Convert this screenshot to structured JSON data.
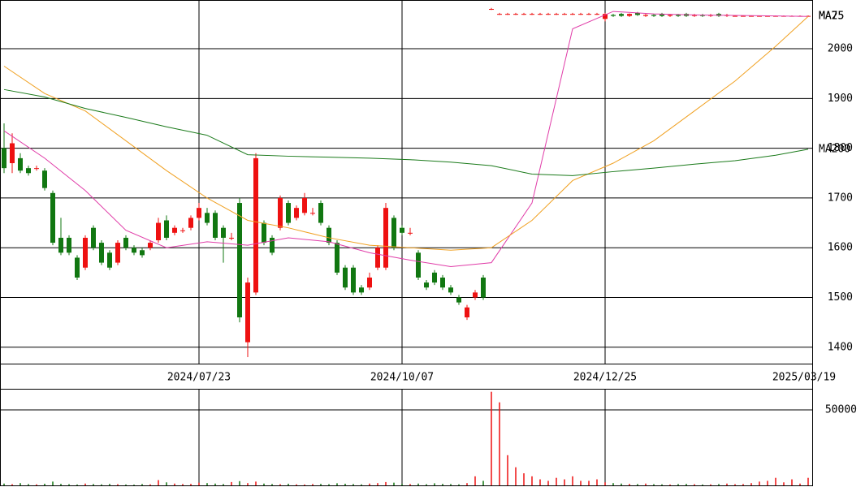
{
  "chart_data": {
    "type": "candlestick",
    "categories": [
      null,
      null,
      null,
      null,
      null,
      null,
      null,
      null,
      null,
      null,
      null,
      null,
      null,
      null,
      null,
      null,
      null,
      null,
      null,
      null,
      null,
      null,
      null,
      null,
      "2024/07/23",
      null,
      null,
      null,
      null,
      null,
      null,
      null,
      null,
      null,
      null,
      null,
      null,
      null,
      null,
      null,
      null,
      null,
      null,
      null,
      null,
      null,
      null,
      null,
      null,
      "2024/10/07",
      null,
      null,
      null,
      null,
      null,
      null,
      null,
      null,
      null,
      null,
      null,
      null,
      null,
      null,
      null,
      null,
      null,
      null,
      null,
      null,
      null,
      null,
      null,
      null,
      "2024/12/25",
      null,
      null,
      null,
      null,
      null,
      null,
      null,
      null,
      null,
      null,
      null,
      null,
      null,
      null,
      null,
      null,
      null,
      null,
      null,
      null,
      null,
      null,
      null,
      null,
      "2025/03/19"
    ],
    "open": [
      1800,
      1770,
      1780,
      1760,
      1760,
      1755,
      1710,
      1620,
      1620,
      1580,
      1560,
      1640,
      1610,
      1590,
      1570,
      1620,
      1600,
      1595,
      1600,
      1615,
      1655,
      1630,
      1635,
      1640,
      1660,
      1670,
      1670,
      1640,
      1620,
      1690,
      1410,
      1510,
      1650,
      1620,
      1640,
      1690,
      1660,
      1670,
      1670,
      1690,
      1640,
      1610,
      1560,
      1560,
      1520,
      1520,
      1560,
      1560,
      1660,
      1640,
      1630,
      1590,
      1530,
      1550,
      1540,
      1520,
      1500,
      1460,
      1500,
      1540,
      2080,
      2070,
      2070,
      2070,
      2070,
      2070,
      2070,
      2070,
      2070,
      2070,
      2070,
      2070,
      2070,
      2070,
      2060,
      2068,
      2070,
      2066,
      2072,
      2066,
      2068,
      2070,
      2066,
      2068,
      2070,
      2066,
      2068,
      2066,
      2070,
      2066,
      2066,
      2066,
      2066,
      2066,
      2066,
      2066,
      2066,
      2066,
      2066,
      2066
    ],
    "high": [
      1850,
      1830,
      1790,
      1765,
      1765,
      1760,
      1715,
      1660,
      1625,
      1585,
      1625,
      1645,
      1615,
      1595,
      1615,
      1625,
      1605,
      1600,
      1615,
      1660,
      1665,
      1645,
      1640,
      1665,
      1690,
      1680,
      1675,
      1645,
      1630,
      1700,
      1540,
      1790,
      1655,
      1625,
      1705,
      1695,
      1685,
      1710,
      1680,
      1695,
      1645,
      1615,
      1565,
      1565,
      1525,
      1550,
      1605,
      1690,
      1665,
      1645,
      1640,
      1595,
      1535,
      1555,
      1545,
      1525,
      1505,
      1485,
      1515,
      1545,
      2082,
      2072,
      2072,
      2072,
      2072,
      2072,
      2072,
      2072,
      2072,
      2072,
      2072,
      2072,
      2072,
      2072,
      2072,
      2070,
      2072,
      2071,
      2074,
      2070,
      2070,
      2072,
      2070,
      2070,
      2072,
      2070,
      2070,
      2070,
      2072,
      2070,
      2067,
      2067,
      2067,
      2067,
      2067,
      2067,
      2067,
      2067,
      2067,
      2067
    ],
    "low": [
      1750,
      1750,
      1750,
      1745,
      1755,
      1715,
      1605,
      1585,
      1585,
      1535,
      1555,
      1595,
      1565,
      1555,
      1565,
      1595,
      1585,
      1580,
      1595,
      1610,
      1615,
      1625,
      1630,
      1635,
      1655,
      1645,
      1615,
      1570,
      1615,
      1450,
      1380,
      1505,
      1605,
      1585,
      1635,
      1645,
      1655,
      1665,
      1665,
      1645,
      1605,
      1545,
      1515,
      1505,
      1505,
      1515,
      1555,
      1555,
      1595,
      1625,
      1625,
      1535,
      1515,
      1525,
      1515,
      1505,
      1485,
      1455,
      1495,
      1495,
      2078,
      2068,
      2068,
      2068,
      2068,
      2068,
      2068,
      2068,
      2068,
      2068,
      2068,
      2068,
      2068,
      2068,
      2055,
      2064,
      2064,
      2064,
      2066,
      2064,
      2064,
      2064,
      2064,
      2064,
      2064,
      2064,
      2064,
      2064,
      2064,
      2064,
      2065,
      2065,
      2065,
      2065,
      2065,
      2065,
      2065,
      2065,
      2065,
      2065
    ],
    "close": [
      1760,
      1810,
      1755,
      1750,
      1760,
      1720,
      1610,
      1590,
      1590,
      1540,
      1620,
      1600,
      1570,
      1560,
      1610,
      1600,
      1590,
      1585,
      1610,
      1650,
      1620,
      1640,
      1635,
      1660,
      1680,
      1650,
      1620,
      1620,
      1620,
      1460,
      1530,
      1780,
      1610,
      1590,
      1700,
      1650,
      1680,
      1700,
      1670,
      1650,
      1610,
      1550,
      1520,
      1510,
      1510,
      1540,
      1600,
      1680,
      1600,
      1630,
      1630,
      1540,
      1520,
      1530,
      1520,
      1510,
      1490,
      1480,
      1510,
      1500,
      2080,
      2070,
      2070,
      2070,
      2070,
      2070,
      2070,
      2070,
      2070,
      2070,
      2070,
      2070,
      2070,
      2070,
      2070,
      2066,
      2066,
      2070,
      2068,
      2068,
      2066,
      2066,
      2068,
      2066,
      2066,
      2068,
      2066,
      2068,
      2066,
      2068,
      2066,
      2066,
      2066,
      2066,
      2066,
      2066,
      2066,
      2066,
      2066,
      2066
    ],
    "up_color": "#ee1111",
    "down_color": "#117711",
    "ylim": [
      1367,
      2098
    ],
    "yticks": [
      1400,
      1500,
      1600,
      1700,
      1800,
      1900,
      2000
    ],
    "series": [
      {
        "name": "MA25",
        "color": "#e03ca8",
        "x": [
          0,
          5,
          10,
          15,
          20,
          25,
          30,
          35,
          40,
          45,
          50,
          55,
          60,
          65,
          70,
          75,
          80,
          85,
          90,
          95,
          99
        ],
        "values": [
          1835,
          1780,
          1715,
          1635,
          1600,
          1612,
          1605,
          1620,
          1612,
          1590,
          1575,
          1562,
          1570,
          1690,
          2040,
          2075,
          2070,
          2068,
          2067,
          2066,
          2065
        ]
      },
      {
        "name": "MA75",
        "color": "#f0a020",
        "x": [
          0,
          5,
          10,
          15,
          20,
          25,
          30,
          35,
          40,
          45,
          50,
          55,
          60,
          65,
          70,
          75,
          80,
          85,
          90,
          95,
          99
        ],
        "values": [
          1965,
          1910,
          1875,
          1815,
          1755,
          1700,
          1655,
          1640,
          1620,
          1605,
          1600,
          1595,
          1600,
          1655,
          1735,
          1770,
          1815,
          1875,
          1935,
          2005,
          2065
        ]
      },
      {
        "name": "MA200",
        "color": "#1a7a1a",
        "x": [
          0,
          5,
          10,
          15,
          20,
          25,
          30,
          35,
          40,
          45,
          50,
          55,
          60,
          65,
          70,
          75,
          80,
          85,
          90,
          95,
          99
        ],
        "values": [
          1918,
          1903,
          1880,
          1862,
          1843,
          1826,
          1787,
          1784,
          1782,
          1780,
          1777,
          1772,
          1765,
          1748,
          1745,
          1753,
          1760,
          1768,
          1775,
          1786,
          1798
        ]
      }
    ],
    "volume": {
      "values": [
        1200,
        800,
        1500,
        900,
        700,
        1100,
        2500,
        1000,
        800,
        600,
        1200,
        900,
        700,
        1000,
        800,
        600,
        500,
        900,
        700,
        3500,
        2000,
        1200,
        900,
        1000,
        1800,
        1500,
        1200,
        900,
        2200,
        2800,
        1500,
        2500,
        1200,
        900,
        800,
        1100,
        700,
        600,
        900,
        1000,
        800,
        1400,
        1100,
        900,
        700,
        1200,
        1500,
        2200,
        1800,
        1000,
        900,
        1200,
        800,
        1400,
        1000,
        900,
        700,
        1500,
        6000,
        3000,
        62000,
        55000,
        20000,
        12000,
        8000,
        6000,
        4000,
        3000,
        5000,
        4000,
        6000,
        3000,
        3000,
        4000,
        2000,
        1500,
        1200,
        1000,
        900,
        1200,
        800,
        700,
        600,
        900,
        1000,
        800,
        600,
        700,
        900,
        1200,
        800,
        900,
        1500,
        2500,
        3000,
        5000,
        2000,
        4000,
        1200,
        5000
      ],
      "ylim": [
        0,
        63440
      ],
      "yticks": [
        50000
      ]
    }
  }
}
